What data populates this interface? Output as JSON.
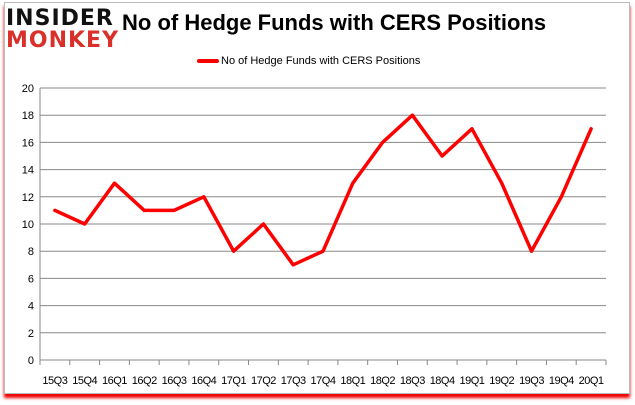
{
  "logo": {
    "line1": "INSIDER",
    "line2": "MONKEY"
  },
  "chart_data": {
    "type": "line",
    "title": "No of Hedge Funds with CERS Positions",
    "categories": [
      "15Q3",
      "15Q4",
      "16Q1",
      "16Q2",
      "16Q3",
      "16Q4",
      "17Q1",
      "17Q2",
      "17Q3",
      "17Q4",
      "18Q1",
      "18Q2",
      "18Q3",
      "18Q4",
      "19Q1",
      "19Q2",
      "19Q3",
      "19Q4",
      "20Q1"
    ],
    "series": [
      {
        "name": "No of Hedge Funds with CERS Positions",
        "color": "#ff0000",
        "values": [
          11,
          10,
          13,
          11,
          11,
          12,
          8,
          10,
          7,
          8,
          13,
          16,
          18,
          15,
          17,
          13,
          8,
          12,
          17
        ]
      }
    ],
    "ylim": [
      0,
      20
    ],
    "yticks": [
      0,
      2,
      4,
      6,
      8,
      10,
      12,
      14,
      16,
      18,
      20
    ],
    "grid": true,
    "legend": "top"
  }
}
